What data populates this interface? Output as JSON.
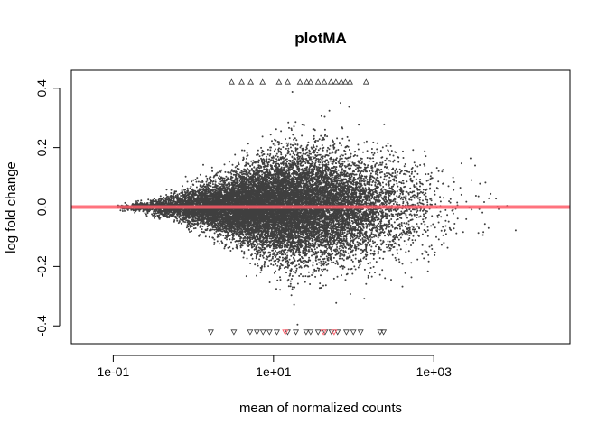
{
  "chart_data": {
    "type": "scatter",
    "title": "plotMA",
    "xlabel": "mean of normalized counts",
    "ylabel": "log fold change",
    "x_scale": "log10",
    "xlim": [
      0.03,
      50000
    ],
    "ylim": [
      -0.46,
      0.46
    ],
    "x_ticks": [
      {
        "value": 0.1,
        "label": "1e-01"
      },
      {
        "value": 10,
        "label": "1e+01"
      },
      {
        "value": 1000,
        "label": "1e+03"
      }
    ],
    "y_ticks": [
      {
        "value": -0.4,
        "label": "-0.4"
      },
      {
        "value": -0.2,
        "label": "-0.2"
      },
      {
        "value": 0.0,
        "label": "0.0"
      },
      {
        "value": 0.2,
        "label": "0.2"
      },
      {
        "value": 0.4,
        "label": "0.4"
      }
    ],
    "reference_line": {
      "y": 0,
      "color": "#ff5a67"
    },
    "point_color": "#3f3f3f",
    "grid": false,
    "legend": "none",
    "outliers_above": [
      {
        "x": 3.0,
        "y": 0.42
      },
      {
        "x": 4.0,
        "y": 0.42
      },
      {
        "x": 5.2,
        "y": 0.42
      },
      {
        "x": 7.3,
        "y": 0.42
      },
      {
        "x": 11.7,
        "y": 0.42
      },
      {
        "x": 15.0,
        "y": 0.42
      },
      {
        "x": 21.4,
        "y": 0.42
      },
      {
        "x": 26.0,
        "y": 0.42
      },
      {
        "x": 29.0,
        "y": 0.42
      },
      {
        "x": 36.0,
        "y": 0.42
      },
      {
        "x": 43.0,
        "y": 0.42
      },
      {
        "x": 52.0,
        "y": 0.42
      },
      {
        "x": 60.0,
        "y": 0.42
      },
      {
        "x": 70.0,
        "y": 0.42
      },
      {
        "x": 79.0,
        "y": 0.42
      },
      {
        "x": 90.0,
        "y": 0.42
      },
      {
        "x": 143.0,
        "y": 0.42
      }
    ],
    "outliers_below": [
      {
        "x": 1.65,
        "y": -0.42
      },
      {
        "x": 3.2,
        "y": -0.42
      },
      {
        "x": 5.1,
        "y": -0.42
      },
      {
        "x": 6.2,
        "y": -0.42
      },
      {
        "x": 7.4,
        "y": -0.42
      },
      {
        "x": 8.9,
        "y": -0.42
      },
      {
        "x": 11.0,
        "y": -0.42
      },
      {
        "x": 15.0,
        "y": -0.42
      },
      {
        "x": 19.0,
        "y": -0.42
      },
      {
        "x": 25.5,
        "y": -0.42
      },
      {
        "x": 29.0,
        "y": -0.42
      },
      {
        "x": 36.0,
        "y": -0.42
      },
      {
        "x": 44.0,
        "y": -0.42
      },
      {
        "x": 53.0,
        "y": -0.42
      },
      {
        "x": 63.0,
        "y": -0.42
      },
      {
        "x": 81.0,
        "y": -0.42
      },
      {
        "x": 99.0,
        "y": -0.42
      },
      {
        "x": 122.0,
        "y": -0.42
      },
      {
        "x": 214.0,
        "y": -0.42
      },
      {
        "x": 236.0,
        "y": -0.42
      }
    ],
    "outliers_below_highlighted": [
      {
        "x": 14.0,
        "y": -0.42
      },
      {
        "x": 42.0,
        "y": -0.42
      },
      {
        "x": 57.0,
        "y": -0.42
      }
    ]
  }
}
